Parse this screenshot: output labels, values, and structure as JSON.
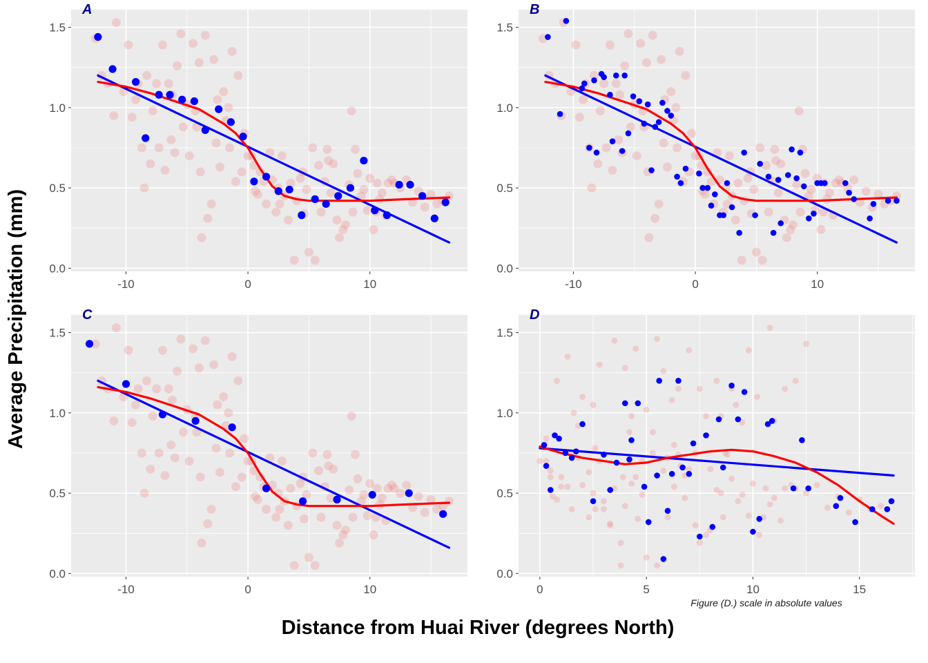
{
  "figure": {
    "ylabel": "Average Precipitation (mm)",
    "xlabel": "Distance from Huai River (degrees North)",
    "caption": "Figure (D.) scale in absolute values",
    "colors": {
      "panel_bg": "#ebebeb",
      "grid": "#ffffff",
      "background_points": "#f08080",
      "binned_points": "#0000ff",
      "linear_fit": "#0000ff",
      "loess_fit": "#ff0000",
      "panel_tag": "#00008b"
    }
  },
  "background_points": {
    "x": [
      -12.5,
      -12.0,
      -11.5,
      -11.0,
      -10.8,
      -10.2,
      -9.8,
      -9.5,
      -9.2,
      -9.0,
      -8.7,
      -8.5,
      -8.3,
      -8.0,
      -7.8,
      -7.5,
      -7.3,
      -7.0,
      -6.8,
      -6.5,
      -6.3,
      -6.0,
      -5.8,
      -5.5,
      -5.3,
      -5.0,
      -4.8,
      -4.5,
      -4.3,
      -4.0,
      -3.8,
      -3.5,
      -3.3,
      -3.0,
      -2.8,
      -2.5,
      -2.3,
      -2.0,
      -1.8,
      -1.5,
      -1.3,
      -1.0,
      -0.8,
      -0.5,
      -0.3,
      0.0,
      0.3,
      0.5,
      0.8,
      1.0,
      1.3,
      1.5,
      1.8,
      2.0,
      2.3,
      2.5,
      2.8,
      3.0,
      3.3,
      3.5,
      3.8,
      4.0,
      4.3,
      4.5,
      4.8,
      5.0,
      5.3,
      5.5,
      5.8,
      6.0,
      6.3,
      6.5,
      6.8,
      7.0,
      7.3,
      7.5,
      7.8,
      8.0,
      8.3,
      8.5,
      8.8,
      9.0,
      9.3,
      9.5,
      9.8,
      10.0,
      10.3,
      10.5,
      10.8,
      11.0,
      11.3,
      11.5,
      11.8,
      12.0,
      12.5,
      13.0,
      13.5,
      14.0,
      14.5,
      15.0,
      15.5,
      16.0,
      16.5,
      -6.2,
      -4.2,
      -2.6,
      -1.6,
      0.6,
      2.6,
      4.6,
      6.6,
      8.6,
      10.6,
      -3.9
    ],
    "y": [
      1.43,
      1.2,
      1.15,
      0.95,
      1.53,
      1.1,
      1.39,
      0.94,
      1.05,
      1.15,
      0.75,
      0.5,
      1.2,
      0.65,
      0.98,
      1.15,
      0.75,
      1.39,
      0.61,
      1.15,
      0.8,
      0.72,
      1.26,
      1.46,
      0.88,
      1.02,
      0.7,
      1.4,
      0.98,
      1.28,
      0.19,
      1.45,
      0.31,
      0.4,
      1.3,
      1.05,
      0.63,
      1.1,
      0.92,
      0.75,
      1.35,
      0.54,
      1.2,
      0.6,
      0.84,
      0.7,
      0.7,
      0.64,
      0.46,
      0.6,
      0.54,
      0.4,
      0.72,
      0.55,
      0.35,
      0.5,
      0.7,
      0.45,
      0.3,
      0.53,
      0.05,
      0.42,
      0.56,
      0.6,
      0.49,
      0.1,
      0.75,
      0.05,
      0.64,
      0.35,
      0.54,
      0.74,
      0.47,
      0.65,
      0.3,
      0.19,
      0.24,
      0.27,
      0.52,
      0.98,
      0.74,
      0.59,
      0.45,
      0.49,
      0.36,
      0.56,
      0.24,
      0.35,
      0.43,
      0.47,
      0.33,
      0.53,
      0.55,
      0.53,
      0.5,
      0.55,
      0.41,
      0.48,
      0.38,
      0.46,
      0.4,
      0.42,
      0.45,
      1.08,
      0.88,
      0.78,
      1.0,
      0.48,
      0.4,
      0.34,
      0.67,
      0.35,
      0.53,
      0.6
    ]
  },
  "chart_data": [
    {
      "type": "scatter",
      "panel": "A",
      "xlim": [
        -14.5,
        18
      ],
      "ylim": [
        -0.02,
        1.61
      ],
      "x_ticks": [
        -10,
        0,
        10
      ],
      "y_ticks": [
        0.0,
        0.5,
        1.0,
        1.5
      ],
      "series": [
        {
          "kind": "binned_points",
          "x": [
            -12.3,
            -11.1,
            -9.2,
            -8.4,
            -7.3,
            -6.4,
            -5.4,
            -4.4,
            -3.5,
            -2.4,
            -1.4,
            -0.4,
            0.5,
            1.5,
            2.5,
            3.4,
            4.4,
            5.5,
            6.4,
            7.4,
            8.4,
            9.5,
            10.4,
            11.4,
            12.4,
            13.3,
            14.3,
            15.3,
            16.2
          ],
          "y": [
            1.44,
            1.24,
            1.16,
            0.81,
            1.08,
            1.08,
            1.05,
            1.04,
            0.86,
            0.99,
            0.91,
            0.82,
            0.54,
            0.57,
            0.48,
            0.49,
            0.33,
            0.43,
            0.4,
            0.45,
            0.5,
            0.67,
            0.36,
            0.33,
            0.52,
            0.52,
            0.45,
            0.31,
            0.41
          ]
        },
        {
          "kind": "linear_fit",
          "x": [
            -12.3,
            16.5
          ],
          "y": [
            1.2,
            0.16
          ]
        },
        {
          "kind": "loess_fit",
          "x": [
            -12.3,
            -10,
            -8,
            -6,
            -4,
            -2,
            -1,
            0,
            1,
            2,
            3,
            4,
            5,
            7,
            10,
            13,
            16.5
          ],
          "y": [
            1.16,
            1.13,
            1.09,
            1.04,
            0.99,
            0.9,
            0.84,
            0.75,
            0.62,
            0.51,
            0.45,
            0.43,
            0.42,
            0.42,
            0.42,
            0.43,
            0.44
          ]
        }
      ]
    },
    {
      "type": "scatter",
      "panel": "B",
      "xlim": [
        -14.5,
        18
      ],
      "ylim": [
        -0.02,
        1.61
      ],
      "x_ticks": [
        -10,
        0,
        10
      ],
      "y_ticks": [
        0.0,
        0.5,
        1.0,
        1.5
      ],
      "series": [
        {
          "kind": "binned_points",
          "x": [
            -12.1,
            -11.1,
            -10.6,
            -9.3,
            -9.1,
            -8.7,
            -8.3,
            -8.1,
            -7.7,
            -7.5,
            -7.0,
            -6.8,
            -6.5,
            -6.0,
            -5.8,
            -5.5,
            -5.1,
            -4.6,
            -4.2,
            -3.9,
            -3.6,
            -3.3,
            -3.0,
            -2.7,
            -2.3,
            -2.0,
            -1.5,
            -1.2,
            -0.8,
            0.3,
            0.6,
            1.0,
            1.3,
            1.6,
            2.0,
            2.3,
            2.6,
            3.0,
            3.6,
            4.0,
            4.9,
            5.3,
            6.0,
            6.4,
            6.8,
            7.0,
            7.6,
            7.9,
            8.3,
            8.6,
            8.9,
            9.3,
            9.7,
            10.0,
            10.3,
            10.6,
            12.3,
            12.6,
            13.0,
            14.3,
            14.6,
            15.8,
            16.5
          ],
          "y": [
            1.44,
            0.96,
            1.54,
            1.12,
            1.15,
            0.75,
            1.17,
            0.72,
            1.21,
            1.19,
            1.08,
            0.79,
            1.2,
            0.73,
            1.2,
            0.84,
            1.07,
            1.04,
            0.9,
            1.02,
            0.61,
            0.88,
            0.91,
            1.03,
            0.98,
            0.95,
            0.57,
            0.53,
            0.62,
            0.59,
            0.5,
            0.5,
            0.39,
            0.46,
            0.33,
            0.33,
            0.53,
            0.38,
            0.22,
            0.72,
            0.33,
            0.65,
            0.57,
            0.22,
            0.55,
            0.28,
            0.58,
            0.74,
            0.56,
            0.72,
            0.51,
            0.31,
            0.34,
            0.53,
            0.53,
            0.53,
            0.53,
            0.47,
            0.43,
            0.31,
            0.4,
            0.42,
            0.42
          ]
        },
        {
          "kind": "linear_fit",
          "x": [
            -12.3,
            16.5
          ],
          "y": [
            1.2,
            0.16
          ]
        },
        {
          "kind": "loess_fit",
          "x": [
            -12.3,
            -10,
            -8,
            -6,
            -4,
            -2,
            -1,
            0,
            1,
            2,
            3,
            4,
            5,
            7,
            10,
            13,
            16.5
          ],
          "y": [
            1.16,
            1.13,
            1.09,
            1.04,
            0.99,
            0.9,
            0.84,
            0.75,
            0.62,
            0.51,
            0.45,
            0.43,
            0.42,
            0.42,
            0.42,
            0.43,
            0.44
          ]
        }
      ]
    },
    {
      "type": "scatter",
      "panel": "C",
      "xlim": [
        -14.5,
        18
      ],
      "ylim": [
        -0.02,
        1.61
      ],
      "x_ticks": [
        -10,
        0,
        10
      ],
      "y_ticks": [
        0.0,
        0.5,
        1.0,
        1.5
      ],
      "series": [
        {
          "kind": "binned_points",
          "x": [
            -13.0,
            -10.0,
            -7.0,
            -4.3,
            -1.3,
            1.5,
            4.5,
            7.3,
            10.2,
            13.2,
            16.0
          ],
          "y": [
            1.43,
            1.18,
            0.99,
            0.95,
            0.91,
            0.53,
            0.45,
            0.46,
            0.49,
            0.5,
            0.37
          ]
        },
        {
          "kind": "linear_fit",
          "x": [
            -12.3,
            16.5
          ],
          "y": [
            1.2,
            0.16
          ]
        },
        {
          "kind": "loess_fit",
          "x": [
            -12.3,
            -10,
            -8,
            -6,
            -4,
            -2,
            -1,
            0,
            1,
            2,
            3,
            4,
            5,
            7,
            10,
            13,
            16.5
          ],
          "y": [
            1.16,
            1.13,
            1.09,
            1.04,
            0.99,
            0.9,
            0.84,
            0.75,
            0.62,
            0.51,
            0.45,
            0.43,
            0.42,
            0.42,
            0.42,
            0.43,
            0.44
          ]
        }
      ]
    },
    {
      "type": "scatter",
      "panel": "D",
      "xlim": [
        -1.0,
        17.6
      ],
      "ylim": [
        -0.02,
        1.61
      ],
      "x_ticks": [
        0,
        5,
        10,
        15
      ],
      "y_ticks": [
        0.0,
        0.5,
        1.0,
        1.5
      ],
      "series": [
        {
          "kind": "binned_points",
          "x": [
            0.2,
            0.3,
            0.5,
            0.7,
            0.9,
            1.2,
            1.5,
            1.7,
            2.0,
            2.5,
            3.0,
            3.3,
            3.6,
            4.0,
            4.2,
            4.3,
            4.6,
            4.9,
            5.1,
            5.5,
            5.6,
            5.8,
            6.0,
            6.2,
            6.5,
            6.7,
            7.0,
            7.2,
            7.5,
            7.8,
            8.1,
            8.4,
            8.6,
            9.0,
            9.3,
            9.6,
            10.0,
            10.3,
            10.7,
            10.9,
            11.9,
            12.3,
            12.6,
            13.9,
            14.1,
            14.8,
            15.6,
            16.3,
            16.5
          ],
          "y": [
            0.8,
            0.67,
            0.52,
            0.86,
            0.84,
            0.75,
            0.72,
            0.76,
            0.93,
            0.45,
            0.74,
            0.52,
            0.69,
            1.06,
            0.71,
            0.83,
            1.06,
            0.54,
            0.32,
            0.61,
            1.2,
            0.09,
            0.39,
            0.62,
            1.2,
            0.66,
            0.62,
            0.81,
            0.23,
            0.86,
            0.29,
            0.96,
            0.66,
            1.17,
            0.96,
            1.13,
            0.26,
            0.34,
            0.93,
            0.95,
            0.53,
            0.83,
            0.53,
            0.42,
            0.47,
            0.32,
            0.4,
            0.4,
            0.45
          ]
        },
        {
          "kind": "linear_fit",
          "x": [
            0.0,
            16.6
          ],
          "y": [
            0.78,
            0.61
          ]
        },
        {
          "kind": "loess_fit",
          "x": [
            0,
            1,
            2,
            3,
            4,
            5,
            6,
            7,
            8,
            9,
            10,
            11,
            12,
            13,
            14,
            15,
            16,
            16.6
          ],
          "y": [
            0.79,
            0.75,
            0.72,
            0.7,
            0.68,
            0.69,
            0.72,
            0.74,
            0.76,
            0.77,
            0.76,
            0.73,
            0.69,
            0.63,
            0.55,
            0.45,
            0.36,
            0.31
          ]
        }
      ]
    }
  ]
}
